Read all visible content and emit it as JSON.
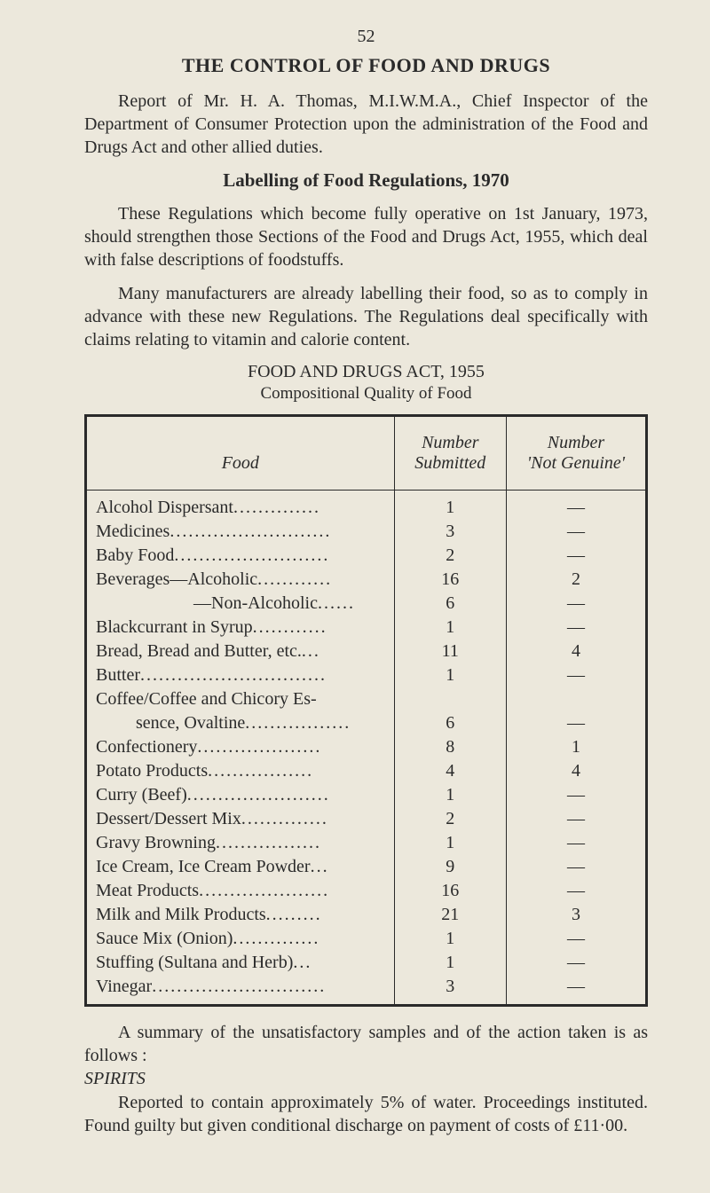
{
  "page_number": "52",
  "main_title": "THE CONTROL OF FOOD AND DRUGS",
  "intro": "Report of Mr. H. A. Thomas, M.I.W.M.A., Chief Inspector of the Department of Consumer Protection upon the administration of the Food and Drugs Act and other allied duties.",
  "sub_title": "Labelling of Food Regulations, 1970",
  "para1": "These Regulations which become fully operative on 1st January, 1973, should strengthen those Sections of the Food and Drugs Act, 1955, which deal with false descriptions of foodstuffs.",
  "para2": "Many manufacturers are already labelling their food, so as to comply in advance with these new Regulations. The Regulations deal specifically with claims relating to vitamin and calorie content.",
  "act_title": "FOOD AND DRUGS ACT, 1955",
  "act_subtitle": "Compositional Quality of Food",
  "table": {
    "headers": {
      "food": "Food",
      "submitted_l1": "Number",
      "submitted_l2": "Submitted",
      "not_genuine_l1": "Number",
      "not_genuine_l2": "'Not Genuine'"
    },
    "rows": [
      {
        "food": "Alcohol Dispersant",
        "dots": "..............",
        "submitted": "1",
        "not_genuine": "—"
      },
      {
        "food": "Medicines",
        "dots": "..........................",
        "submitted": "3",
        "not_genuine": "—"
      },
      {
        "food": "Baby Food",
        "dots": ".........................",
        "submitted": "2",
        "not_genuine": "—"
      },
      {
        "food": "Beverages—Alcoholic",
        "dots": "............",
        "submitted": "16",
        "not_genuine": "2"
      },
      {
        "food": "—Non-Alcoholic",
        "dots": "......",
        "submitted": "6",
        "not_genuine": "—",
        "indent": "small"
      },
      {
        "food": "Blackcurrant in Syrup",
        "dots": "............",
        "submitted": "1",
        "not_genuine": "—"
      },
      {
        "food": "Bread, Bread and Butter, etc.",
        "dots": "...",
        "submitted": "11",
        "not_genuine": "4"
      },
      {
        "food": "Butter",
        "dots": "..............................",
        "submitted": "1",
        "not_genuine": "—"
      },
      {
        "food": "Coffee/Coffee and Chicory Es-",
        "dots": "",
        "submitted": "",
        "not_genuine": ""
      },
      {
        "food": "sence, Ovaltine",
        "dots": ".................",
        "submitted": "6",
        "not_genuine": "—",
        "indent": "row"
      },
      {
        "food": "Confectionery",
        "dots": "....................",
        "submitted": "8",
        "not_genuine": "1"
      },
      {
        "food": "Potato Products",
        "dots": ".................",
        "submitted": "4",
        "not_genuine": "4"
      },
      {
        "food": "Curry (Beef)",
        "dots": ".......................",
        "submitted": "1",
        "not_genuine": "—"
      },
      {
        "food": "Dessert/Dessert Mix",
        "dots": "..............",
        "submitted": "2",
        "not_genuine": "—"
      },
      {
        "food": "Gravy Browning",
        "dots": ".................",
        "submitted": "1",
        "not_genuine": "—"
      },
      {
        "food": "Ice Cream, Ice Cream Powder",
        "dots": "...",
        "submitted": "9",
        "not_genuine": "—"
      },
      {
        "food": "Meat Products",
        "dots": ".....................",
        "submitted": "16",
        "not_genuine": "—"
      },
      {
        "food": "Milk and Milk Products",
        "dots": ".........",
        "submitted": "21",
        "not_genuine": "3"
      },
      {
        "food": "Sauce Mix (Onion)",
        "dots": "..............",
        "submitted": "1",
        "not_genuine": "—"
      },
      {
        "food": "Stuffing (Sultana and Herb)",
        "dots": "...",
        "submitted": "1",
        "not_genuine": "—"
      },
      {
        "food": "Vinegar",
        "dots": "............................",
        "submitted": "3",
        "not_genuine": "—"
      }
    ]
  },
  "summary": "A summary of the unsatisfactory samples and of the action taken is as follows :",
  "spirits_label": "SPIRITS",
  "spirits_para": "Reported to contain approximately 5% of water. Proceedings instituted. Found guilty but given conditional discharge on payment of costs of £11·00."
}
